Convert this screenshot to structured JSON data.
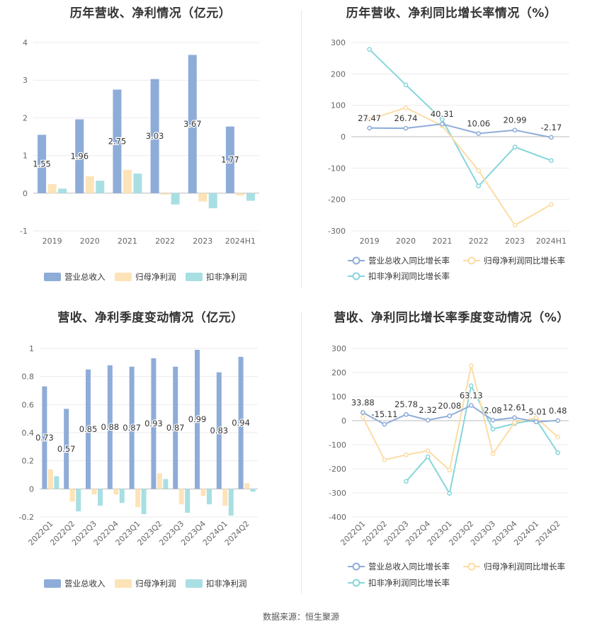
{
  "source": "数据来源：恒生聚源",
  "chart_data": [
    {
      "id": "annual-rev",
      "type": "bar",
      "title": "历年营收、净利情况（亿元）",
      "categories": [
        "2019",
        "2020",
        "2021",
        "2022",
        "2023",
        "2024H1"
      ],
      "ylim": [
        -1,
        4
      ],
      "yticks": [
        -1,
        0,
        1,
        2,
        3,
        4
      ],
      "series": [
        {
          "name": "营业总收入",
          "color": "#8eacd8",
          "values": [
            1.55,
            1.96,
            2.75,
            3.03,
            3.67,
            1.77
          ],
          "labels": [
            "1.55",
            "1.96",
            "2.75",
            "3.03",
            "3.67",
            "1.77"
          ]
        },
        {
          "name": "归母净利润",
          "color": "#fde3b8",
          "values": [
            0.24,
            0.45,
            0.62,
            -0.04,
            -0.22,
            -0.06
          ]
        },
        {
          "name": "扣非净利润",
          "color": "#a8dfe3",
          "values": [
            0.12,
            0.33,
            0.52,
            -0.3,
            -0.4,
            -0.2
          ]
        }
      ],
      "legend": "bottom"
    },
    {
      "id": "annual-growth",
      "type": "line",
      "title": "历年营收、净利同比增长率情况（%）",
      "categories": [
        "2019",
        "2020",
        "2021",
        "2022",
        "2023",
        "2024H1"
      ],
      "ylim": [
        -300,
        300
      ],
      "yticks": [
        -300,
        -200,
        -100,
        0,
        100,
        200,
        300
      ],
      "series": [
        {
          "name": "营业总收入同比增长率",
          "color": "#8eacd8",
          "values": [
            27.47,
            26.74,
            40.31,
            10.06,
            20.99,
            -2.17
          ],
          "labels": [
            "27.47",
            "26.74",
            "40.31",
            "10.06",
            "20.99",
            "-2.17"
          ]
        },
        {
          "name": "归母净利润同比增长率",
          "color": "#fcdca4",
          "values": [
            55,
            92,
            35,
            -108,
            -282,
            -216
          ]
        },
        {
          "name": "扣非净利润同比增长率",
          "color": "#86d6dc",
          "values": [
            278,
            165,
            55,
            -157,
            -33,
            -76
          ]
        }
      ],
      "legend": "bottom"
    },
    {
      "id": "quarterly-rev",
      "type": "bar",
      "title": "营收、净利季度变动情况（亿元）",
      "categories": [
        "2022Q1",
        "2022Q2",
        "2022Q3",
        "2022Q4",
        "2023Q1",
        "2023Q2",
        "2023Q3",
        "2023Q4",
        "2024Q1",
        "2024Q2"
      ],
      "ylim": [
        -0.2,
        1
      ],
      "yticks": [
        -0.2,
        0,
        0.2,
        0.4,
        0.6,
        0.8,
        1
      ],
      "series": [
        {
          "name": "营业总收入",
          "color": "#8eacd8",
          "values": [
            0.73,
            0.57,
            0.85,
            0.88,
            0.87,
            0.93,
            0.87,
            0.99,
            0.83,
            0.94
          ],
          "labels": [
            "0.73",
            "0.57",
            "0.85",
            "0.88",
            "0.87",
            "0.93",
            "0.87",
            "0.99",
            "0.83",
            "0.94"
          ]
        },
        {
          "name": "归母净利润",
          "color": "#fde3b8",
          "values": [
            0.14,
            -0.09,
            -0.04,
            -0.04,
            -0.13,
            0.11,
            -0.11,
            -0.05,
            -0.12,
            0.04
          ]
        },
        {
          "name": "扣非净利润",
          "color": "#a8dfe3",
          "values": [
            0.09,
            -0.16,
            -0.12,
            -0.1,
            -0.18,
            0.07,
            -0.17,
            -0.11,
            -0.19,
            -0.02
          ]
        }
      ],
      "legend": "bottom"
    },
    {
      "id": "quarterly-growth",
      "type": "line",
      "title": "营收、净利同比增长率季度变动情况（%）",
      "categories": [
        "2022Q1",
        "2022Q2",
        "2022Q3",
        "2022Q4",
        "2023Q1",
        "2023Q2",
        "2023Q3",
        "2023Q4",
        "2024Q1",
        "2024Q2"
      ],
      "ylim": [
        -400,
        300
      ],
      "yticks": [
        -400,
        -300,
        -200,
        -100,
        0,
        100,
        200,
        300
      ],
      "series": [
        {
          "name": "营业总收入同比增长率",
          "color": "#8eacd8",
          "values": [
            33.88,
            -15.11,
            25.78,
            2.32,
            20.08,
            63.13,
            2.08,
            12.61,
            -5.01,
            0.48
          ],
          "labels": [
            "33.88",
            "-15.11",
            "25.78",
            "2.32",
            "20.08",
            "63.13",
            "2.08",
            "12.61",
            "-5.01",
            "0.48"
          ]
        },
        {
          "name": "归母净利润同比增长率",
          "color": "#fcdca4",
          "values": [
            15,
            -163,
            -142,
            -125,
            -205,
            228,
            -138,
            -8,
            12,
            -68
          ]
        },
        {
          "name": "扣非净利润同比增长率",
          "color": "#86d6dc",
          "values": [
            null,
            null,
            -252,
            -150,
            -302,
            145,
            -35,
            -12,
            4,
            -133
          ]
        }
      ],
      "legend": "bottom"
    }
  ]
}
